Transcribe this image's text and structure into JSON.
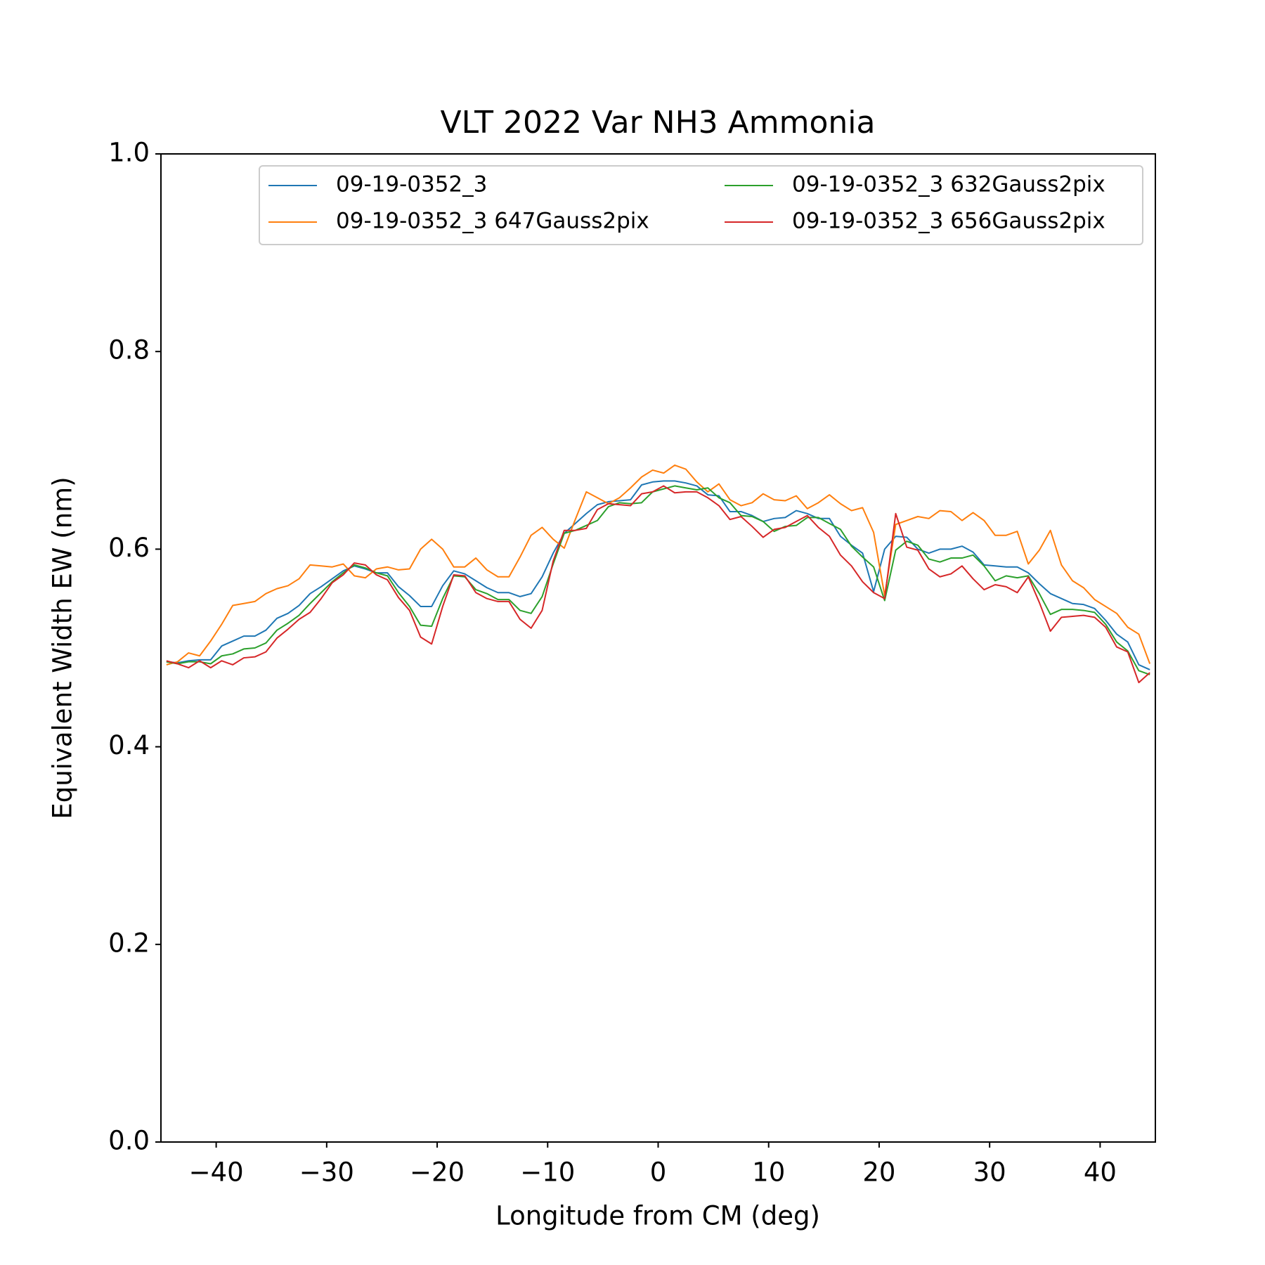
{
  "chart_data": {
    "type": "line",
    "title": "VLT 2022 Var NH3 Ammonia",
    "xlabel": "Longitude from CM (deg)",
    "ylabel": "Equivalent Width EW (nm)",
    "xlim": [
      -45,
      45
    ],
    "ylim": [
      0,
      1
    ],
    "xticks": [
      {
        "value": -40,
        "label": "−40"
      },
      {
        "value": -30,
        "label": "−30"
      },
      {
        "value": -20,
        "label": "−20"
      },
      {
        "value": -10,
        "label": "−10"
      },
      0,
      10,
      20,
      30,
      40
    ],
    "yticks": [
      {
        "value": 0,
        "label": "0.0"
      },
      0.2,
      0.4,
      0.6,
      0.8,
      {
        "value": 1,
        "label": "1.0"
      }
    ],
    "grid": false,
    "legend_loc": "upper right",
    "legend_ncol": 2,
    "x": [
      -44.5,
      -43.5,
      -42.5,
      -41.5,
      -40.5,
      -39.5,
      -38.5,
      -37.5,
      -36.5,
      -35.5,
      -34.5,
      -33.5,
      -32.5,
      -31.5,
      -30.5,
      -29.5,
      -28.5,
      -27.5,
      -26.5,
      -25.5,
      -24.5,
      -23.5,
      -22.5,
      -21.5,
      -20.5,
      -19.5,
      -18.5,
      -17.5,
      -16.5,
      -15.5,
      -14.5,
      -13.5,
      -12.5,
      -11.5,
      -10.5,
      -9.5,
      -8.5,
      -7.5,
      -6.5,
      -5.5,
      -4.5,
      -3.5,
      -2.5,
      -1.5,
      -0.5,
      0.5,
      1.5,
      2.5,
      3.5,
      4.5,
      5.5,
      6.5,
      7.5,
      8.5,
      9.5,
      10.5,
      11.5,
      12.5,
      13.5,
      14.5,
      15.5,
      16.5,
      17.5,
      18.5,
      19.5,
      20.5,
      21.5,
      22.5,
      23.5,
      24.5,
      25.5,
      26.5,
      27.5,
      28.5,
      29.5,
      30.5,
      31.5,
      32.5,
      33.5,
      34.5,
      35.5,
      36.5,
      37.5,
      38.5,
      39.5,
      40.5,
      41.5,
      42.5,
      43.5,
      44.5
    ],
    "series": [
      {
        "name": "09-19-0352_3",
        "color": "#1f77b4",
        "values": [
          0.486,
          0.485,
          0.487,
          0.488,
          0.488,
          0.502,
          0.507,
          0.512,
          0.512,
          0.518,
          0.53,
          0.535,
          0.543,
          0.555,
          0.562,
          0.57,
          0.578,
          0.583,
          0.58,
          0.576,
          0.576,
          0.562,
          0.553,
          0.542,
          0.542,
          0.563,
          0.578,
          0.575,
          0.568,
          0.561,
          0.556,
          0.556,
          0.552,
          0.555,
          0.572,
          0.596,
          0.616,
          0.626,
          0.636,
          0.645,
          0.648,
          0.649,
          0.65,
          0.665,
          0.668,
          0.669,
          0.669,
          0.667,
          0.664,
          0.655,
          0.654,
          0.638,
          0.638,
          0.634,
          0.628,
          0.631,
          0.632,
          0.639,
          0.636,
          0.631,
          0.631,
          0.613,
          0.604,
          0.596,
          0.557,
          0.6,
          0.613,
          0.612,
          0.6,
          0.596,
          0.6,
          0.6,
          0.603,
          0.597,
          0.584,
          0.583,
          0.582,
          0.582,
          0.576,
          0.565,
          0.555,
          0.55,
          0.545,
          0.544,
          0.54,
          0.528,
          0.514,
          0.506,
          0.483,
          0.478
        ]
      },
      {
        "name": "09-19-0352_3 647Gauss2pix",
        "color": "#ff7f0e",
        "values": [
          0.483,
          0.486,
          0.495,
          0.492,
          0.507,
          0.524,
          0.543,
          0.545,
          0.547,
          0.555,
          0.56,
          0.563,
          0.57,
          0.584,
          0.583,
          0.582,
          0.585,
          0.573,
          0.571,
          0.58,
          0.582,
          0.579,
          0.58,
          0.6,
          0.61,
          0.6,
          0.582,
          0.582,
          0.591,
          0.579,
          0.572,
          0.572,
          0.592,
          0.614,
          0.622,
          0.61,
          0.601,
          0.63,
          0.658,
          0.652,
          0.646,
          0.652,
          0.662,
          0.673,
          0.68,
          0.677,
          0.685,
          0.681,
          0.668,
          0.658,
          0.666,
          0.65,
          0.644,
          0.647,
          0.656,
          0.65,
          0.649,
          0.654,
          0.641,
          0.647,
          0.655,
          0.646,
          0.639,
          0.642,
          0.617,
          0.553,
          0.625,
          0.629,
          0.633,
          0.631,
          0.639,
          0.638,
          0.629,
          0.637,
          0.629,
          0.614,
          0.614,
          0.618,
          0.585,
          0.599,
          0.619,
          0.584,
          0.568,
          0.561,
          0.549,
          0.542,
          0.535,
          0.521,
          0.514,
          0.484
        ]
      },
      {
        "name": "09-19-0352_3 632Gauss2pix",
        "color": "#2ca02c",
        "values": [
          0.486,
          0.484,
          0.486,
          0.486,
          0.484,
          0.492,
          0.494,
          0.499,
          0.5,
          0.505,
          0.518,
          0.525,
          0.533,
          0.545,
          0.556,
          0.567,
          0.576,
          0.584,
          0.581,
          0.576,
          0.573,
          0.556,
          0.542,
          0.523,
          0.522,
          0.55,
          0.573,
          0.572,
          0.559,
          0.555,
          0.549,
          0.549,
          0.538,
          0.535,
          0.552,
          0.585,
          0.616,
          0.619,
          0.624,
          0.629,
          0.643,
          0.647,
          0.646,
          0.647,
          0.658,
          0.661,
          0.664,
          0.662,
          0.66,
          0.662,
          0.652,
          0.647,
          0.634,
          0.633,
          0.628,
          0.618,
          0.623,
          0.624,
          0.632,
          0.632,
          0.626,
          0.62,
          0.603,
          0.592,
          0.582,
          0.548,
          0.599,
          0.608,
          0.604,
          0.59,
          0.587,
          0.591,
          0.591,
          0.594,
          0.583,
          0.568,
          0.573,
          0.571,
          0.573,
          0.555,
          0.534,
          0.539,
          0.539,
          0.538,
          0.536,
          0.524,
          0.506,
          0.497,
          0.477,
          0.473
        ]
      },
      {
        "name": "09-19-0352_3 656Gauss2pix",
        "color": "#d62728",
        "values": [
          0.487,
          0.484,
          0.48,
          0.487,
          0.48,
          0.487,
          0.483,
          0.49,
          0.491,
          0.496,
          0.51,
          0.519,
          0.529,
          0.536,
          0.55,
          0.566,
          0.574,
          0.586,
          0.584,
          0.574,
          0.569,
          0.551,
          0.538,
          0.511,
          0.504,
          0.542,
          0.574,
          0.573,
          0.556,
          0.55,
          0.547,
          0.547,
          0.529,
          0.52,
          0.538,
          0.588,
          0.619,
          0.619,
          0.621,
          0.64,
          0.646,
          0.645,
          0.644,
          0.656,
          0.658,
          0.664,
          0.657,
          0.658,
          0.658,
          0.652,
          0.644,
          0.63,
          0.633,
          0.623,
          0.612,
          0.62,
          0.622,
          0.628,
          0.634,
          0.622,
          0.613,
          0.594,
          0.583,
          0.567,
          0.556,
          0.55,
          0.636,
          0.602,
          0.599,
          0.58,
          0.572,
          0.575,
          0.583,
          0.57,
          0.559,
          0.564,
          0.562,
          0.556,
          0.572,
          0.546,
          0.517,
          0.531,
          0.532,
          0.533,
          0.531,
          0.521,
          0.501,
          0.496,
          0.465,
          0.475
        ]
      }
    ]
  }
}
